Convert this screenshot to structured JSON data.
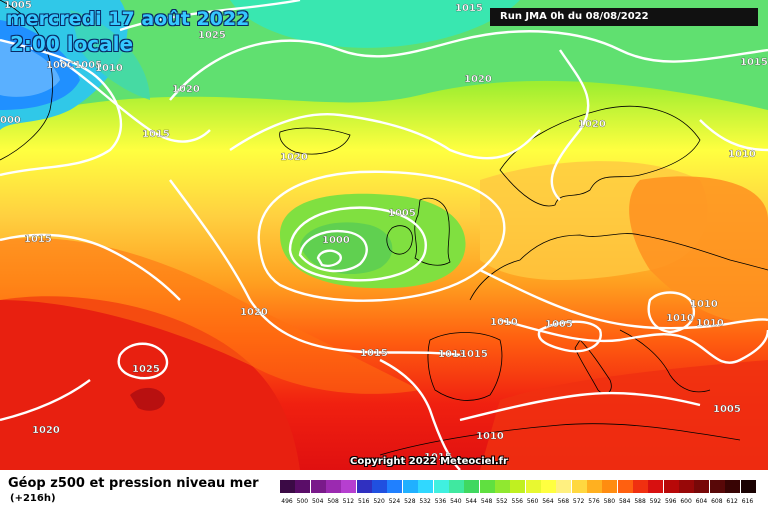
{
  "header": {
    "date": "mercredi 17 août 2022",
    "time": "2:00 locale",
    "run": "Run JMA 0h du 08/08/2022"
  },
  "map": {
    "isobar_labels": [
      {
        "text": "1005",
        "id": "a1"
      },
      {
        "text": "1025",
        "id": "a2"
      },
      {
        "text": "1015",
        "id": "a3"
      },
      {
        "text": "100C1005",
        "id": "a4"
      },
      {
        "text": "1010",
        "id": "a5"
      },
      {
        "text": "1020",
        "id": "a6"
      },
      {
        "text": "000",
        "id": "a7"
      },
      {
        "text": "1015",
        "id": "a8"
      },
      {
        "text": "1020",
        "id": "a9"
      },
      {
        "text": "1020",
        "id": "a10"
      },
      {
        "text": "1015",
        "id": "a11"
      },
      {
        "text": "1020",
        "id": "a12"
      },
      {
        "text": "1010",
        "id": "a13"
      },
      {
        "text": "1005",
        "id": "a14"
      },
      {
        "text": "1015",
        "id": "a15"
      },
      {
        "text": "1000",
        "id": "a16"
      },
      {
        "text": "1020",
        "id": "a17"
      },
      {
        "text": "1010",
        "id": "a18"
      },
      {
        "text": "1005",
        "id": "a19"
      },
      {
        "text": "1010",
        "id": "a20"
      },
      {
        "text": "1010",
        "id": "a21"
      },
      {
        "text": "1010",
        "id": "a22"
      },
      {
        "text": "1015",
        "id": "a23"
      },
      {
        "text": "1013",
        "id": "a24"
      },
      {
        "text": "1015",
        "id": "a25"
      },
      {
        "text": "1025",
        "id": "a26"
      },
      {
        "text": "1020",
        "id": "a27"
      },
      {
        "text": "1015",
        "id": "a28"
      },
      {
        "text": "1010",
        "id": "a29"
      },
      {
        "text": "1005",
        "id": "a30"
      }
    ],
    "copyright": "Copyright 2022 Meteociel.fr"
  },
  "footer": {
    "title": "Géop z500 et pression niveau mer",
    "subtitle": "(+216h)"
  },
  "legend": {
    "ticks": [
      "496",
      "500",
      "504",
      "508",
      "512",
      "516",
      "520",
      "524",
      "528",
      "532",
      "536",
      "540",
      "544",
      "548",
      "552",
      "556",
      "560",
      "564",
      "568",
      "572",
      "576",
      "580",
      "584",
      "588",
      "592",
      "596",
      "600",
      "604",
      "608",
      "612",
      "616"
    ],
    "colors": [
      "#3b0a45",
      "#5a0d68",
      "#7a1a8a",
      "#9b2ab0",
      "#b63fd0",
      "#3030c0",
      "#2050e0",
      "#2080ff",
      "#20b0ff",
      "#30d8ff",
      "#40f0e0",
      "#40e8a0",
      "#40d860",
      "#60e040",
      "#90e830",
      "#c0f020",
      "#e8f830",
      "#ffff40",
      "#fff080",
      "#ffd840",
      "#ffb020",
      "#ff8c10",
      "#ff6010",
      "#f03010",
      "#d81010",
      "#b80808",
      "#980808",
      "#780808",
      "#580808",
      "#380404",
      "#1a0202"
    ]
  }
}
